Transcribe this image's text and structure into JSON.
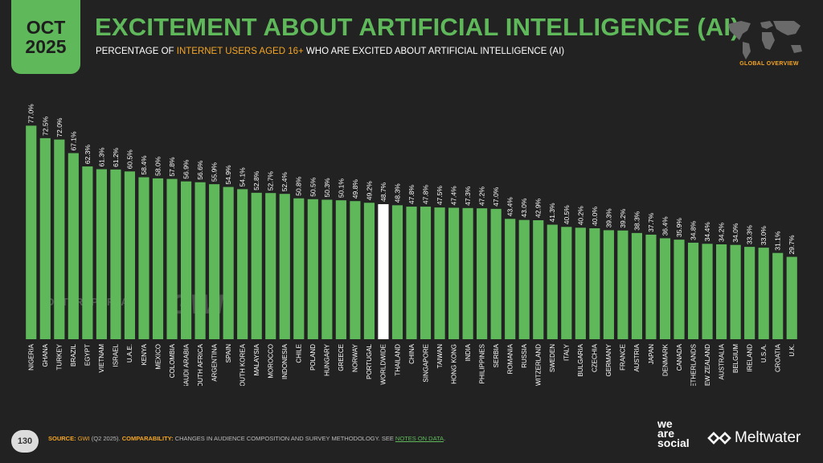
{
  "header": {
    "month": "OCT",
    "year": "2025",
    "title": "EXCITEMENT ABOUT ARTIFICIAL INTELLIGENCE (AI)",
    "subtitle_pre": "PERCENTAGE OF ",
    "subtitle_highlight": "INTERNET USERS AGED 16+",
    "subtitle_post": " WHO ARE EXCITED ABOUT ARTIFICIAL INTELLIGENCE (AI)",
    "global_label": "GLOBAL OVERVIEW"
  },
  "watermarks": {
    "datareportal": "DATAREPORTAL",
    "gwi": "GWI."
  },
  "footer": {
    "page_number": "130",
    "source_key": "SOURCE:",
    "source_org": "GWI",
    "source_period": " (Q2 2025). ",
    "comparability_key": "COMPARABILITY:",
    "comparability_text": " CHANGES IN AUDIENCE COMPOSITION AND SURVEY METHODOLOGY. SEE ",
    "notes_link": "NOTES ON DATA",
    "notes_end": "."
  },
  "brands": {
    "we": "we",
    "are": "are",
    "social": "social",
    "meltwater": "Meltwater"
  },
  "colors": {
    "bar": "#5fb95b",
    "highlight_bar": "#ffffff",
    "background": "#222222",
    "accent": "#f5a623"
  },
  "chart_data": {
    "type": "bar",
    "title": "EXCITEMENT ABOUT ARTIFICIAL INTELLIGENCE (AI)",
    "categories": [
      "NIGERIA",
      "GHANA",
      "TURKEY",
      "BRAZIL",
      "EGYPT",
      "VIETNAM",
      "ISRAEL",
      "U.A.E.",
      "KENYA",
      "MEXICO",
      "COLOMBIA",
      "SAUDI ARABIA",
      "SOUTH AFRICA",
      "ARGENTINA",
      "SPAIN",
      "SOUTH KOREA",
      "MALAYSIA",
      "MOROCCO",
      "INDONESIA",
      "CHILE",
      "POLAND",
      "HUNGARY",
      "GREECE",
      "NORWAY",
      "PORTUGAL",
      "WORLDWIDE",
      "THAILAND",
      "CHINA",
      "SINGAPORE",
      "TAIWAN",
      "HONG KONG",
      "INDIA",
      "PHILIPPINES",
      "SERBIA",
      "ROMANIA",
      "RUSSIA",
      "SWITZERLAND",
      "SWEDEN",
      "ITALY",
      "BULGARIA",
      "CZECHIA",
      "GERMANY",
      "FRANCE",
      "AUSTRIA",
      "JAPAN",
      "DENMARK",
      "CANADA",
      "NETHERLANDS",
      "NEW ZEALAND",
      "AUSTRALIA",
      "BELGIUM",
      "IRELAND",
      "U.S.A.",
      "CROATIA",
      "U.K."
    ],
    "values": [
      77.0,
      72.5,
      72.0,
      67.1,
      62.3,
      61.3,
      61.2,
      60.5,
      58.4,
      58.0,
      57.8,
      56.9,
      56.6,
      55.9,
      54.9,
      54.1,
      52.8,
      52.7,
      52.4,
      50.8,
      50.5,
      50.3,
      50.1,
      49.8,
      49.2,
      48.7,
      48.3,
      47.8,
      47.8,
      47.5,
      47.4,
      47.3,
      47.2,
      47.0,
      43.4,
      43.0,
      42.9,
      41.3,
      40.5,
      40.2,
      40.0,
      39.3,
      39.2,
      38.3,
      37.7,
      36.4,
      35.9,
      34.8,
      34.4,
      34.2,
      34.0,
      33.3,
      33.0,
      31.1,
      29.7
    ],
    "labels": [
      "77.0%",
      "72.5%",
      "72.0%",
      "67.1%",
      "62.3%",
      "61.3%",
      "61.2%",
      "60.5%",
      "58.4%",
      "58.0%",
      "57.8%",
      "56.9%",
      "56.6%",
      "55.9%",
      "54.9%",
      "54.1%",
      "52.8%",
      "52.7%",
      "52.4%",
      "50.8%",
      "50.5%",
      "50.3%",
      "50.1%",
      "49.8%",
      "49.2%",
      "48.7%",
      "48.3%",
      "47.8%",
      "47.8%",
      "47.5%",
      "47.4%",
      "47.3%",
      "47.2%",
      "47.0%",
      "43.4%",
      "43.0%",
      "42.9%",
      "41.3%",
      "40.5%",
      "40.2%",
      "40.0%",
      "39.3%",
      "39.2%",
      "38.3%",
      "37.7%",
      "36.4%",
      "35.9%",
      "34.8%",
      "34.4%",
      "34.2%",
      "34.0%",
      "33.3%",
      "33.0%",
      "31.1%",
      "29.7%"
    ],
    "highlight": "WORLDWIDE",
    "ylim": [
      0,
      80
    ],
    "grid": false
  }
}
